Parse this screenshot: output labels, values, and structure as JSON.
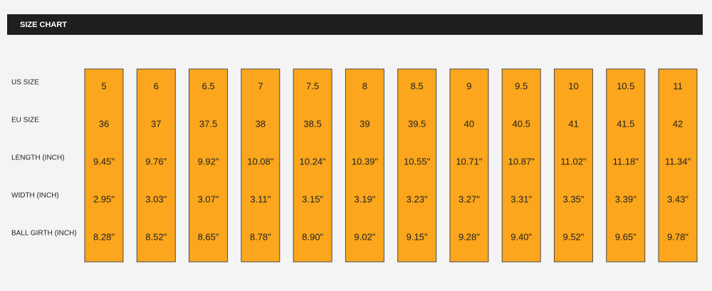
{
  "header": {
    "title": "SIZE CHART"
  },
  "table": {
    "row_labels": [
      "US SIZE",
      "EU SIZE",
      "LENGTH (INCH)",
      "WIDTH (INCH)",
      "BALL GIRTH (INCH)"
    ],
    "columns": [
      [
        "5",
        "36",
        "9.45\"",
        "2.95\"",
        "8.28\""
      ],
      [
        "6",
        "37",
        "9.76\"",
        "3.03\"",
        "8.52\""
      ],
      [
        "6.5",
        "37.5",
        "9.92\"",
        "3.07\"",
        "8.65\""
      ],
      [
        "7",
        "38",
        "10.08\"",
        "3.11\"",
        "8.78\""
      ],
      [
        "7.5",
        "38.5",
        "10.24\"",
        "3.15\"",
        "8.90\""
      ],
      [
        "8",
        "39",
        "10.39\"",
        "3.19\"",
        "9.02\""
      ],
      [
        "8.5",
        "39.5",
        "10.55\"",
        "3.23\"",
        "9.15\""
      ],
      [
        "9",
        "40",
        "10.71\"",
        "3.27\"",
        "9.28\""
      ],
      [
        "9.5",
        "40.5",
        "10.87\"",
        "3.31\"",
        "9.40\""
      ],
      [
        "10",
        "41",
        "11.02\"",
        "3.35\"",
        "9.52\""
      ],
      [
        "10.5",
        "41.5",
        "11.18\"",
        "3.39\"",
        "9.65\""
      ],
      [
        "11",
        "42",
        "11.34\"",
        "3.43\"",
        "9.78\""
      ]
    ]
  }
}
